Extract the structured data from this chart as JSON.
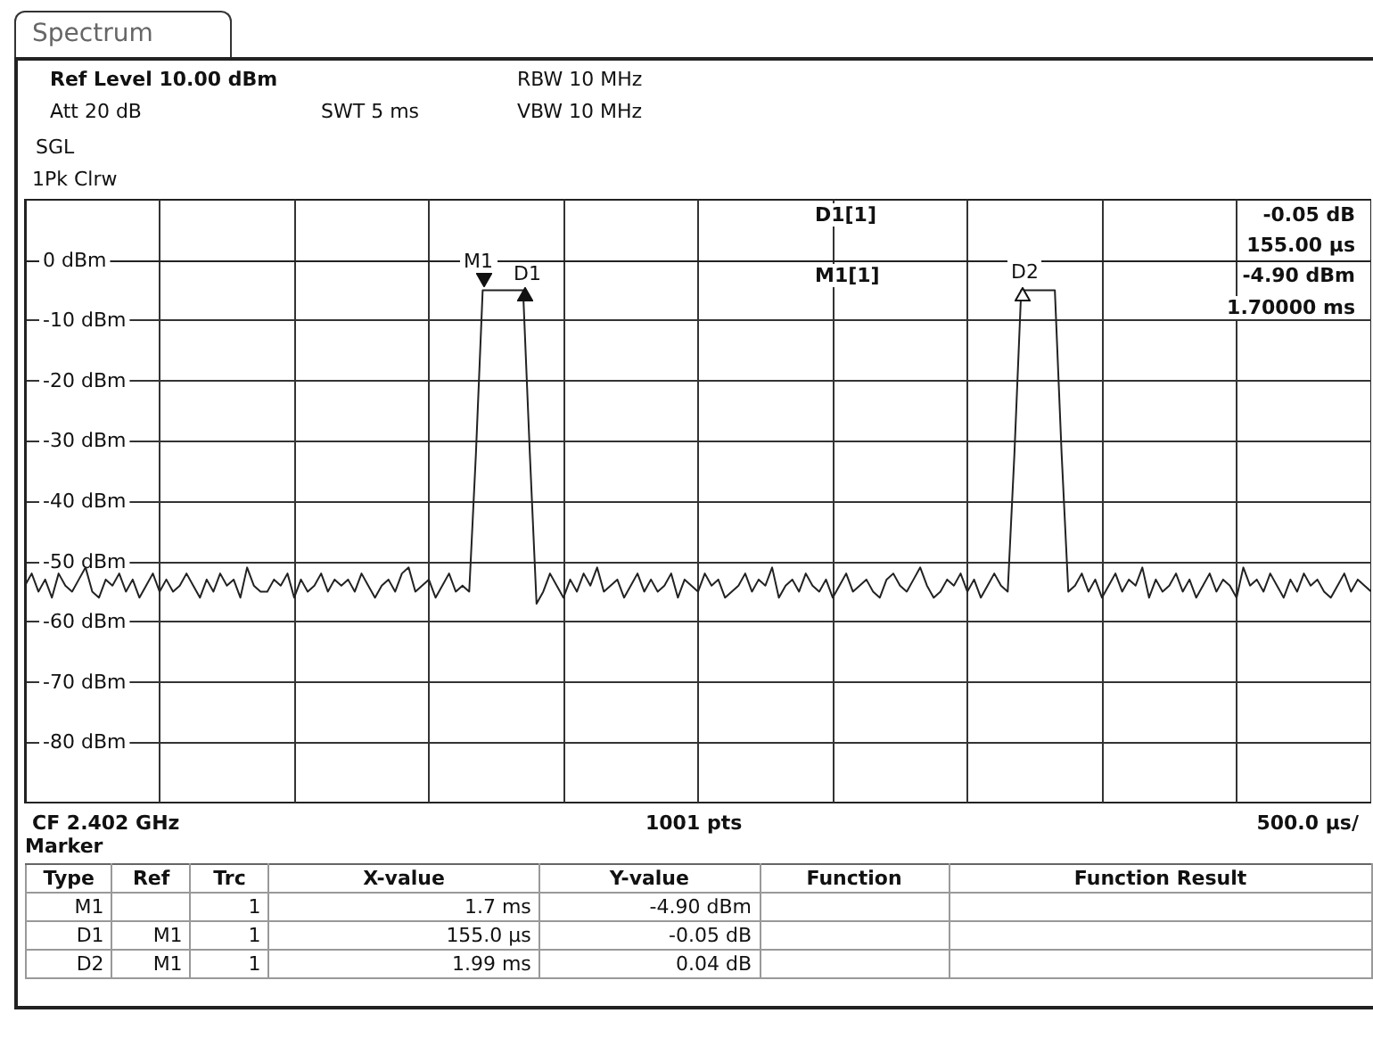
{
  "chart_data": {
    "type": "line",
    "title": "Spectrum",
    "categories": [
      null,
      null,
      null,
      null,
      null,
      null,
      null,
      null,
      null,
      null,
      null,
      null,
      null,
      null,
      null,
      null,
      null,
      null,
      null,
      null,
      null,
      null,
      null,
      null,
      null,
      null,
      null,
      null,
      null,
      null,
      null,
      null,
      null,
      null,
      null,
      null,
      null,
      null,
      null,
      null,
      null,
      null,
      null,
      null,
      null,
      null,
      null,
      null,
      null,
      null,
      null,
      null,
      null,
      null,
      null,
      null,
      null,
      null,
      null,
      null,
      null,
      null,
      null,
      null,
      null,
      null,
      null,
      null,
      null,
      null,
      null,
      null,
      null,
      null,
      null,
      null,
      null,
      null,
      null,
      null,
      null,
      null,
      null,
      null,
      null,
      null,
      null,
      null,
      null,
      null,
      null,
      null,
      null,
      null,
      null,
      null,
      null,
      null,
      null,
      null,
      null,
      null,
      null,
      null,
      null,
      null,
      null,
      null,
      null,
      null,
      null,
      null,
      null,
      null,
      null,
      null,
      null,
      null,
      null,
      null,
      null,
      null,
      null,
      null,
      null,
      null,
      null,
      null,
      null,
      null,
      null,
      null,
      null,
      null,
      null,
      null,
      null,
      null,
      null,
      null,
      null,
      null,
      null,
      null,
      null,
      null,
      null,
      null,
      null,
      null,
      null,
      null,
      null,
      null,
      null,
      null,
      null,
      null,
      null,
      null,
      null,
      null,
      null,
      null,
      null,
      null,
      null,
      null,
      null,
      null,
      null,
      null,
      null,
      null,
      null,
      null,
      null,
      null,
      null,
      null,
      null,
      null,
      null,
      null,
      null,
      null,
      null,
      null,
      null,
      null,
      null,
      null,
      null,
      null,
      null,
      null,
      null,
      null,
      null,
      null,
      null
    ],
    "series": [
      {
        "color": "#222222",
        "values": [
          -54,
          -52,
          -55,
          -53,
          -56,
          -52,
          -54,
          -55,
          -53,
          -51,
          -55,
          -56,
          -53,
          -54,
          -52,
          -55,
          -53,
          -56,
          -54,
          -52,
          -55,
          -53,
          -55,
          -54,
          -52,
          -54,
          -56,
          -53,
          -55,
          -52,
          -54,
          -53,
          -56,
          -51,
          -54,
          -55,
          -55,
          -53,
          -54,
          -52,
          -56,
          -53,
          -55,
          -54,
          -52,
          -55,
          -53,
          -54,
          -53,
          -55,
          -52,
          -54,
          -56,
          -54,
          -53,
          -55,
          -52,
          -51,
          -55,
          -54,
          -53,
          -56,
          -54,
          -52,
          -55,
          -54,
          -55,
          -32,
          -5,
          -5,
          -5,
          -5,
          -5,
          -5,
          -5,
          -32,
          -57,
          -55,
          -52,
          -54,
          -56,
          -53,
          -55,
          -52,
          -54,
          -51,
          -55,
          -54,
          -53,
          -56,
          -54,
          -52,
          -55,
          -53,
          -55,
          -54,
          -52,
          -56,
          -53,
          -54,
          -55,
          -52,
          -54,
          -53,
          -56,
          -55,
          -54,
          -52,
          -55,
          -53,
          -54,
          -51,
          -56,
          -54,
          -53,
          -55,
          -52,
          -54,
          -55,
          -53,
          -56,
          -54,
          -52,
          -55,
          -54,
          -53,
          -55,
          -56,
          -53,
          -52,
          -54,
          -55,
          -53,
          -51,
          -54,
          -56,
          -55,
          -53,
          -54,
          -52,
          -55,
          -53,
          -56,
          -54,
          -52,
          -54,
          -55,
          -32,
          -5,
          -5,
          -5,
          -5,
          -5,
          -5,
          -32,
          -55,
          -54,
          -52,
          -55,
          -53,
          -56,
          -54,
          -52,
          -55,
          -53,
          -54,
          -51,
          -56,
          -53,
          -55,
          -54,
          -52,
          -55,
          -53,
          -56,
          -54,
          -52,
          -55,
          -53,
          -54,
          -56,
          -51,
          -54,
          -53,
          -55,
          -52,
          -54,
          -56,
          -53,
          -55,
          -52,
          -54,
          -53,
          -55,
          -56,
          -54,
          -52,
          -55,
          -53,
          -54,
          -55
        ]
      }
    ],
    "ylim": [
      -90,
      10
    ],
    "yticks": [
      {
        "value": 0,
        "label": "0 dBm"
      },
      {
        "value": -10,
        "label": "-10 dBm"
      },
      {
        "value": -20,
        "label": "-20 dBm"
      },
      {
        "value": -30,
        "label": "-30 dBm"
      },
      {
        "value": -40,
        "label": "-40 dBm"
      },
      {
        "value": -50,
        "label": "-50 dBm"
      },
      {
        "value": -60,
        "label": "-60 dBm"
      },
      {
        "value": -70,
        "label": "-70 dBm"
      },
      {
        "value": -80,
        "label": "-80 dBm"
      }
    ],
    "tick_labels": "y",
    "grid": true,
    "line_style": "solid",
    "annotations": [
      "M1",
      "D1",
      "D2",
      "Ref Level 10.00 dBm",
      "Att 20 dB",
      "SWT 5 ms",
      "RBW 10 MHz",
      "VBW 10 MHz",
      "SGL",
      "1Pk Clrw",
      "D1[1]",
      "-0.05 dB",
      "155.00 µs",
      "M1[1]",
      "-4.90 dBm",
      "1.70000 ms",
      "CF 2.402 GHz",
      "1001 pts",
      "500.0 µs/",
      "Marker",
      "Type",
      "Ref",
      "Trc",
      "X-value",
      "Y-value",
      "Function",
      "Function Result",
      "M1",
      "1",
      "1.7 ms",
      "-4.90 dBm",
      "D1",
      "M1",
      "1",
      "155.0 µs",
      "-0.05 dB",
      "D2",
      "M1",
      "1",
      "1.99 ms",
      "0.04 dB"
    ]
  }
}
